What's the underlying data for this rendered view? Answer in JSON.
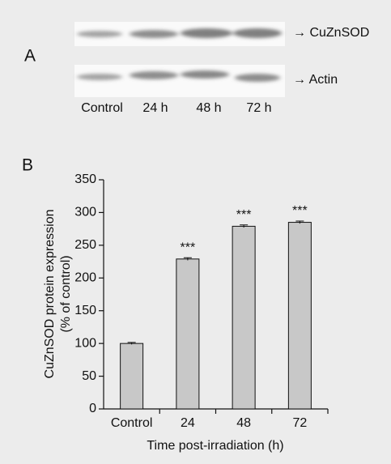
{
  "panel_a": {
    "label": "A",
    "bands": [
      "→ CuZnSOD",
      "→ Actin"
    ],
    "lanes": [
      "Control",
      "24 h",
      "48 h",
      "72 h"
    ]
  },
  "chart_data": {
    "type": "bar",
    "panel_label": "B",
    "categories": [
      "Control",
      "24",
      "48",
      "72"
    ],
    "values": [
      100,
      229,
      279,
      285
    ],
    "errors": [
      1.5,
      2,
      2,
      2
    ],
    "annotations": [
      null,
      "***",
      "***",
      "***"
    ],
    "color": "#c8c8c8",
    "ylim": [
      0,
      350
    ],
    "yticks": [
      0,
      50,
      100,
      150,
      200,
      250,
      300,
      350
    ],
    "ylabel": [
      "CuZnSOD protein expression",
      "(% of control)"
    ],
    "xlabel": "Time post-irradiation (h)"
  }
}
